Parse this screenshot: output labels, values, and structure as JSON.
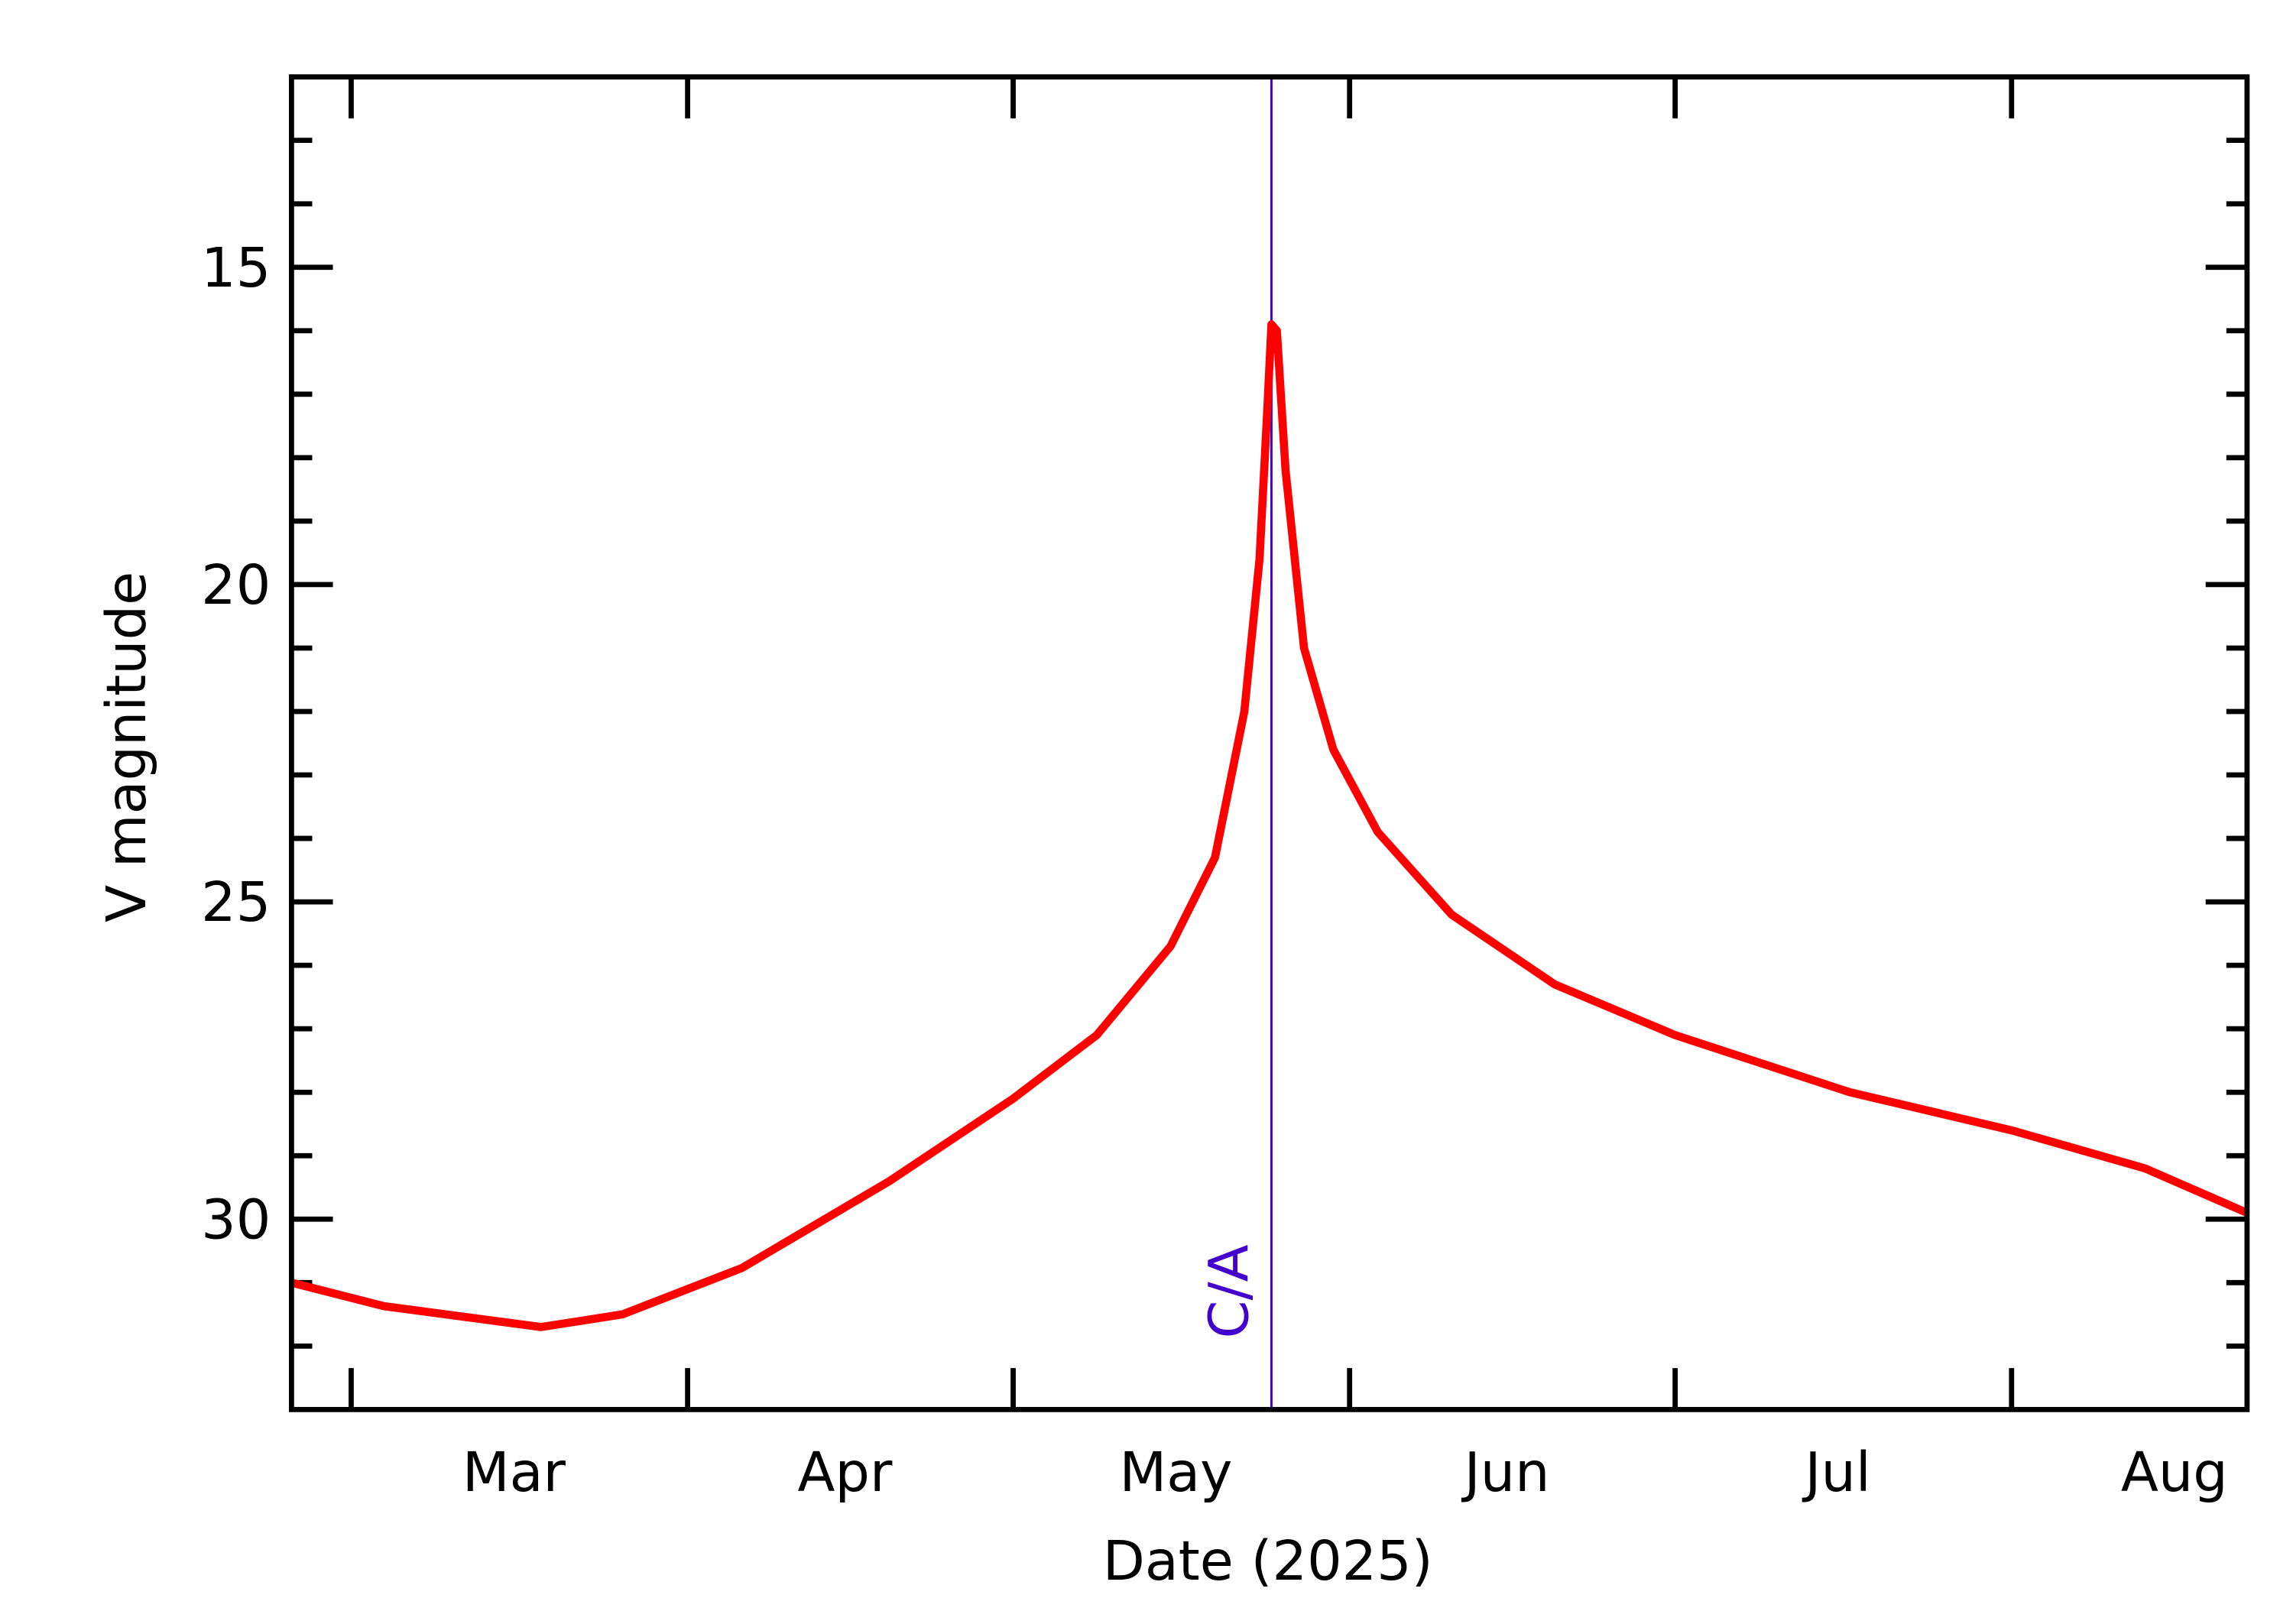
{
  "chart_data": {
    "type": "line",
    "xlabel": "Date (2025)",
    "ylabel": "V magnitude",
    "x": [
      54.5,
      63,
      77.5,
      85,
      96,
      109.6,
      121,
      128.7,
      135.5,
      139.6,
      142.3,
      143.7,
      144.4,
      144.8,
      145.3,
      146.1,
      147.8,
      150.5,
      154.6,
      161.4,
      170.9,
      182,
      198.1,
      213,
      225.3,
      234.7
    ],
    "series": [
      {
        "name": "V",
        "color": "#ff0000",
        "values": [
          31.0,
          31.37,
          31.7,
          31.5,
          30.77,
          29.4,
          28.1,
          27.1,
          25.7,
          24.3,
          22.0,
          19.6,
          17.3,
          15.9,
          16.0,
          18.2,
          21.0,
          22.6,
          23.9,
          25.2,
          26.3,
          27.1,
          28.0,
          28.6,
          29.2,
          29.9
        ]
      }
    ],
    "xlim": [
      54.5,
      234.7
    ],
    "xticks": [
      {
        "value": 75,
        "label": "Mar"
      },
      {
        "value": 105.5,
        "label": "Apr"
      },
      {
        "value": 136,
        "label": "May"
      },
      {
        "value": 166.5,
        "label": "Jun"
      },
      {
        "value": 197,
        "label": "Jul"
      },
      {
        "value": 228,
        "label": "Aug"
      }
    ],
    "xtick_marks": [
      60,
      91,
      121,
      152,
      182,
      213
    ],
    "ylim": [
      12,
      33
    ],
    "y_inverted": true,
    "yticks": [
      15,
      20,
      25,
      30
    ],
    "yminor": [
      13,
      14,
      16,
      17,
      18,
      19,
      21,
      22,
      23,
      24,
      26,
      27,
      28,
      29,
      31,
      32
    ],
    "annotations": [
      {
        "text": "C/A",
        "x": 144.8,
        "color": "#4400cc"
      }
    ]
  }
}
